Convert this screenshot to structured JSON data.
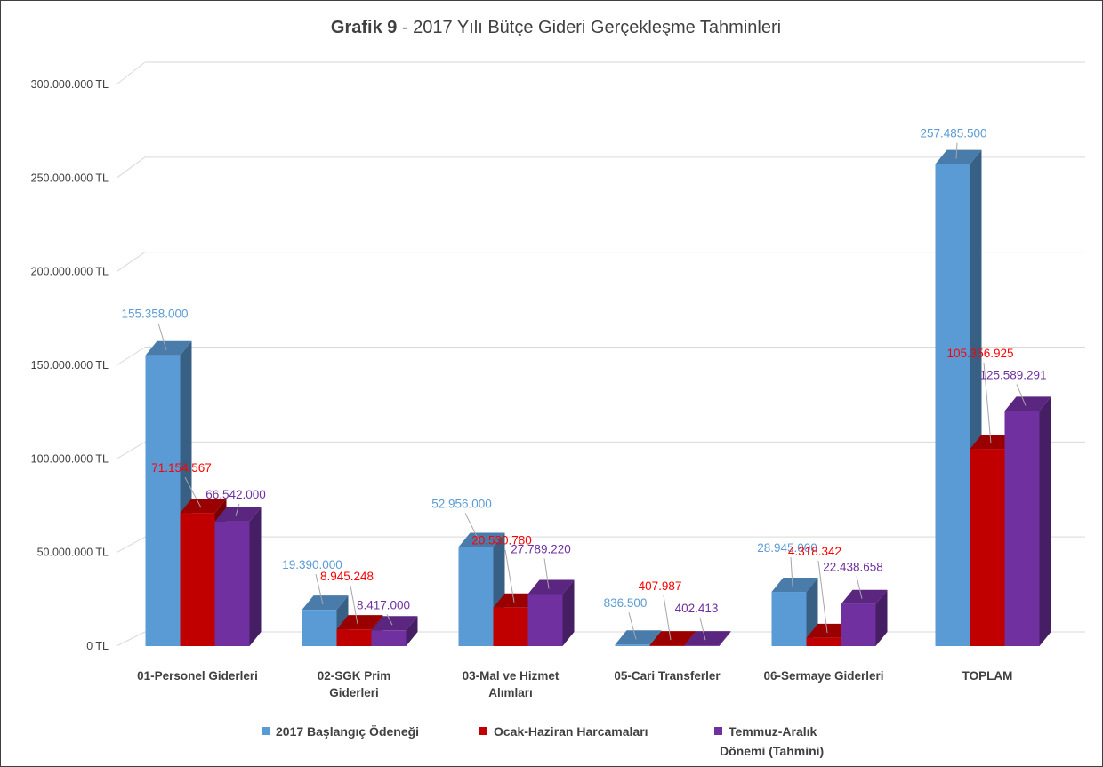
{
  "chart_data": {
    "type": "bar",
    "title_prefix": "Grafik 9",
    "title_rest": " - 2017 Yılı Bütçe Gideri Gerçekleşme Tahminleri",
    "categories": [
      [
        "01-Personel Giderleri"
      ],
      [
        "02-SGK Prim",
        "Giderleri"
      ],
      [
        "03-Mal ve Hizmet",
        "Alımları"
      ],
      [
        "05-Cari Transferler"
      ],
      [
        "06-Sermaye Giderleri"
      ],
      [
        "TOPLAM"
      ]
    ],
    "series": [
      {
        "name": "2017 Başlangıç Ödeneği",
        "color": "#5b9bd5",
        "values": [
          155358000,
          19390000,
          52956000,
          836500,
          28945000,
          257485500
        ],
        "labels": [
          "155.358.000",
          "19.390.000",
          "52.956.000",
          "836.500",
          "28.945.000",
          "257.485.500"
        ]
      },
      {
        "name": "Ocak-Haziran Harcamaları",
        "color": "#c00000",
        "values": [
          71154567,
          8945248,
          20530780,
          407987,
          4318342,
          105356925
        ],
        "labels": [
          "71.154.567",
          "8.945.248",
          "20.530.780",
          "407.987",
          "4.318.342",
          "105.356.925"
        ]
      },
      {
        "name": "Temmuz-Aralık Dönemi (Tahmini)",
        "name_lines": [
          "Temmuz-Aralık",
          "Dönemi (Tahmini)"
        ],
        "color": "#7030a0",
        "values": [
          66542000,
          8417000,
          27789220,
          402413,
          22438658,
          125589291
        ],
        "labels": [
          "66.542.000",
          "8.417.000",
          "27.789.220",
          "402.413",
          "22.438.658",
          "125.589.291"
        ]
      }
    ],
    "label_colors": [
      "#5b9bd5",
      "#ff0000",
      "#7030a0"
    ],
    "y_ticks": [
      "0 TL",
      "50.000.000 TL",
      "100.000.000 TL",
      "150.000.000 TL",
      "200.000.000 TL",
      "250.000.000 TL",
      "300.000.000 TL"
    ],
    "ylim": [
      0,
      300000000
    ],
    "grid": true,
    "legend_position": "bottom"
  }
}
